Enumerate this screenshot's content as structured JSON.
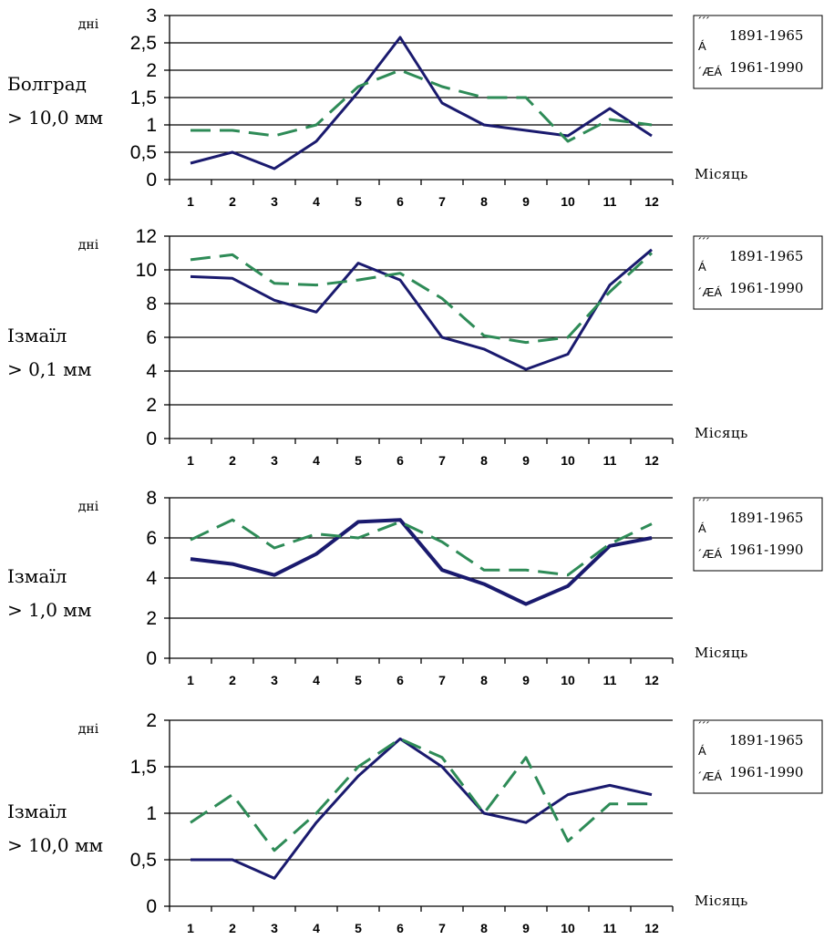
{
  "colors": {
    "series1": "#1a1a6e",
    "series2": "#2e8b57",
    "grid": "#000000"
  },
  "chart_data": [
    {
      "type": "line",
      "location": "Болград",
      "threshold": "> 10,0 мм",
      "ylabel": "дні",
      "xlabel": "Місяць",
      "x": [
        1,
        2,
        3,
        4,
        5,
        6,
        7,
        8,
        9,
        10,
        11,
        12
      ],
      "x_tick_labels": [
        "1",
        "2",
        "3",
        "4",
        "5",
        "6",
        "7",
        "8",
        "9",
        "10",
        "11",
        "12"
      ],
      "ylim": [
        0,
        3
      ],
      "y_ticks": [
        0,
        0.5,
        1,
        1.5,
        2,
        2.5,
        3
      ],
      "y_tick_labels": [
        "0",
        "0,5",
        "1",
        "1,5",
        "2",
        "2,5",
        "3"
      ],
      "grid": true,
      "legend_position": "right",
      "legend_symbols": [
        "´´´",
        "Á",
        "´ÆÁ"
      ],
      "series": [
        {
          "name": "1891-1965",
          "style": "solid",
          "values": [
            0.3,
            0.5,
            0.2,
            0.7,
            1.6,
            2.6,
            1.4,
            1.0,
            0.9,
            0.8,
            1.3,
            0.8
          ]
        },
        {
          "name": "1961-1990",
          "style": "dashed",
          "values": [
            0.9,
            0.9,
            0.8,
            1.0,
            1.7,
            2.0,
            1.7,
            1.5,
            1.5,
            0.7,
            1.1,
            1.0
          ]
        }
      ]
    },
    {
      "type": "line",
      "location": "Ізмаїл",
      "threshold": "> 0,1 мм",
      "ylabel": "дні",
      "xlabel": "Місяць",
      "x": [
        1,
        2,
        3,
        4,
        5,
        6,
        7,
        8,
        9,
        10,
        11,
        12
      ],
      "x_tick_labels": [
        "1",
        "2",
        "3",
        "4",
        "5",
        "6",
        "7",
        "8",
        "9",
        "10",
        "11",
        "12"
      ],
      "ylim": [
        0,
        12
      ],
      "y_ticks": [
        0,
        2,
        4,
        6,
        8,
        10,
        12
      ],
      "y_tick_labels": [
        "0",
        "2",
        "4",
        "6",
        "8",
        "10",
        "12"
      ],
      "grid": true,
      "legend_position": "right",
      "legend_symbols": [
        "´´´",
        "Á",
        "´ÆÁ"
      ],
      "series": [
        {
          "name": "1891-1965",
          "style": "solid",
          "values": [
            9.6,
            9.5,
            8.2,
            7.5,
            10.4,
            9.4,
            6.0,
            5.3,
            4.1,
            5.0,
            9.1,
            11.2
          ]
        },
        {
          "name": "1961-1990",
          "style": "dashed",
          "values": [
            10.6,
            10.9,
            9.2,
            9.1,
            9.4,
            9.8,
            8.3,
            6.1,
            5.7,
            6.0,
            8.7,
            11.0
          ]
        }
      ]
    },
    {
      "type": "line",
      "location": "Ізмаїл",
      "threshold": "> 1,0 мм",
      "ylabel": "дні",
      "xlabel": "Місяць",
      "x": [
        1,
        2,
        3,
        4,
        5,
        6,
        7,
        8,
        9,
        10,
        11,
        12
      ],
      "x_tick_labels": [
        "1",
        "2",
        "3",
        "4",
        "5",
        "6",
        "7",
        "8",
        "9",
        "10",
        "11",
        "12"
      ],
      "ylim": [
        0,
        8
      ],
      "y_ticks": [
        0,
        2,
        4,
        6,
        8
      ],
      "y_tick_labels": [
        "0",
        "2",
        "4",
        "6",
        "8"
      ],
      "grid": true,
      "legend_position": "right",
      "legend_symbols": [
        "´´´",
        "Á",
        "´ÆÁ"
      ],
      "series": [
        {
          "name": "1891-1965",
          "style": "solid",
          "values": [
            4.95,
            4.7,
            4.15,
            5.2,
            6.8,
            6.9,
            4.4,
            3.7,
            2.7,
            3.6,
            5.6,
            6.0
          ]
        },
        {
          "name": "1961-1990",
          "style": "dashed",
          "values": [
            5.9,
            6.9,
            5.5,
            6.2,
            6.0,
            6.8,
            5.8,
            4.4,
            4.4,
            4.15,
            5.7,
            6.7
          ]
        }
      ]
    },
    {
      "type": "line",
      "location": "Ізмаїл",
      "threshold": "> 10,0 мм",
      "ylabel": "дні",
      "xlabel": "Місяць",
      "x": [
        1,
        2,
        3,
        4,
        5,
        6,
        7,
        8,
        9,
        10,
        11,
        12
      ],
      "x_tick_labels": [
        "1",
        "2",
        "3",
        "4",
        "5",
        "6",
        "7",
        "8",
        "9",
        "10",
        "11",
        "12"
      ],
      "ylim": [
        0,
        2
      ],
      "y_ticks": [
        0,
        0.5,
        1,
        1.5,
        2
      ],
      "y_tick_labels": [
        "0",
        "0,5",
        "1",
        "1,5",
        "2"
      ],
      "grid": true,
      "legend_position": "right",
      "legend_symbols": [
        "´´´",
        "Á",
        "´ÆÁ"
      ],
      "series": [
        {
          "name": "1891-1965",
          "style": "solid",
          "values": [
            0.5,
            0.5,
            0.3,
            0.9,
            1.4,
            1.8,
            1.5,
            1.0,
            0.9,
            1.2,
            1.3,
            1.2
          ]
        },
        {
          "name": "1961-1990",
          "style": "dashed",
          "values": [
            0.9,
            1.2,
            0.6,
            1.0,
            1.5,
            1.8,
            1.6,
            1.0,
            1.6,
            0.7,
            1.1,
            1.1
          ]
        }
      ]
    }
  ]
}
